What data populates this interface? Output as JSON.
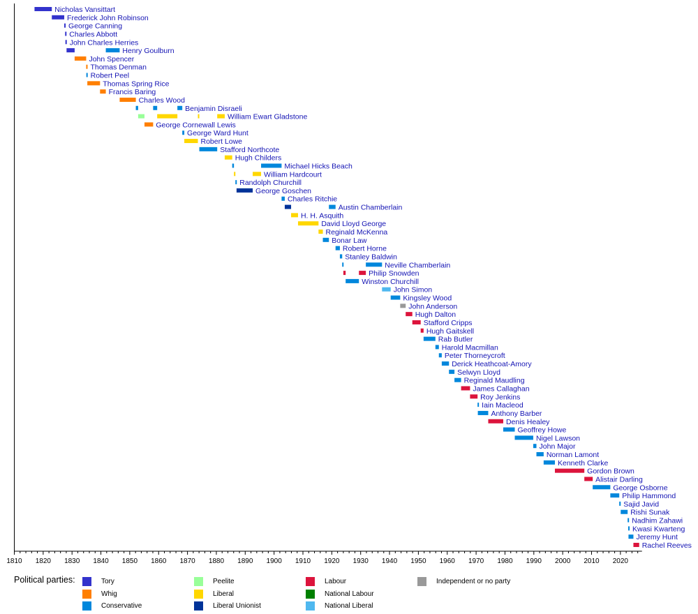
{
  "chart_data": {
    "type": "timeline",
    "title": "",
    "xlim": [
      1810,
      2026.5
    ],
    "x_ticks": [
      1810,
      1820,
      1830,
      1840,
      1850,
      1860,
      1870,
      1880,
      1890,
      1900,
      1910,
      1920,
      1930,
      1940,
      1950,
      1960,
      1970,
      1980,
      1990,
      2000,
      2010,
      2020
    ],
    "parties": {
      "Tory": "#3333cc",
      "Whig": "#ff7f00",
      "Conservative": "#0087dc",
      "Peelite": "#99ff99",
      "Liberal": "#ffd700",
      "Liberal Unionist": "#003399",
      "Labour": "#dc143c",
      "National Labour": "#008000",
      "National Liberal": "#4fb8ef",
      "Independent or no party": "#999999"
    },
    "legend_title": "Political parties:",
    "legend_order": [
      "Tory",
      "Whig",
      "Conservative",
      "Peelite",
      "Liberal",
      "Liberal Unionist",
      "Labour",
      "National Labour",
      "National Liberal",
      "Independent or no party"
    ],
    "rows": [
      {
        "name": "Nicholas Vansittart",
        "terms": [
          [
            1817,
            1823,
            "Tory"
          ]
        ]
      },
      {
        "name": "Frederick John Robinson",
        "terms": [
          [
            1823,
            1827.3,
            "Tory"
          ]
        ]
      },
      {
        "name": "George Canning",
        "terms": [
          [
            1827.3,
            1827.6,
            "Tory"
          ]
        ]
      },
      {
        "name": "Charles Abbott",
        "terms": [
          [
            1827.6,
            1827.7,
            "Tory"
          ]
        ]
      },
      {
        "name": "John Charles Herries",
        "terms": [
          [
            1827.7,
            1828.1,
            "Tory"
          ]
        ]
      },
      {
        "name": "Henry Goulburn",
        "terms": [
          [
            1828.1,
            1830.9,
            "Tory"
          ],
          [
            1841.7,
            1846.5,
            "Conservative"
          ]
        ]
      },
      {
        "name": "John Spencer",
        "terms": [
          [
            1830.9,
            1834.9,
            "Whig"
          ]
        ]
      },
      {
        "name": "Thomas Denman",
        "terms": [
          [
            1834.9,
            1834.95,
            "Whig"
          ]
        ]
      },
      {
        "name": "Robert Peel",
        "terms": [
          [
            1834.95,
            1835.3,
            "Conservative"
          ]
        ]
      },
      {
        "name": "Thomas Spring Rice",
        "terms": [
          [
            1835.3,
            1839.7,
            "Whig"
          ]
        ]
      },
      {
        "name": "Francis Baring",
        "terms": [
          [
            1839.7,
            1841.7,
            "Whig"
          ]
        ]
      },
      {
        "name": "Charles Wood",
        "terms": [
          [
            1846.5,
            1852.1,
            "Whig"
          ]
        ]
      },
      {
        "name": "Benjamin Disraeli",
        "terms": [
          [
            1852.1,
            1852.9,
            "Conservative"
          ],
          [
            1858.1,
            1859.5,
            "Conservative"
          ],
          [
            1866.5,
            1868.2,
            "Conservative"
          ]
        ]
      },
      {
        "name": "William Ewart Gladstone",
        "terms": [
          [
            1852.9,
            1855.1,
            "Peelite"
          ],
          [
            1859.5,
            1866.5,
            "Liberal"
          ],
          [
            1873.6,
            1874.1,
            "Liberal"
          ],
          [
            1880.3,
            1882.9,
            "Liberal"
          ]
        ]
      },
      {
        "name": "George Cornewall Lewis",
        "terms": [
          [
            1855.1,
            1858.1,
            "Whig"
          ]
        ]
      },
      {
        "name": "George Ward Hunt",
        "terms": [
          [
            1868.2,
            1868.9,
            "Conservative"
          ]
        ]
      },
      {
        "name": "Robert Lowe",
        "terms": [
          [
            1868.9,
            1873.6,
            "Liberal"
          ]
        ]
      },
      {
        "name": "Stafford Northcote",
        "terms": [
          [
            1874.1,
            1880.3,
            "Conservative"
          ]
        ]
      },
      {
        "name": "Hugh Childers",
        "terms": [
          [
            1882.9,
            1885.5,
            "Liberal"
          ]
        ]
      },
      {
        "name": "Michael Hicks Beach",
        "terms": [
          [
            1885.5,
            1886.1,
            "Conservative"
          ],
          [
            1895.5,
            1902.6,
            "Conservative"
          ]
        ]
      },
      {
        "name": "William Hardcourt",
        "terms": [
          [
            1886.1,
            1886.6,
            "Liberal"
          ],
          [
            1892.6,
            1895.5,
            "Liberal"
          ]
        ]
      },
      {
        "name": "Randolph Churchill",
        "terms": [
          [
            1886.6,
            1887.0,
            "Conservative"
          ]
        ]
      },
      {
        "name": "George Goschen",
        "terms": [
          [
            1887.0,
            1892.6,
            "Liberal Unionist"
          ]
        ]
      },
      {
        "name": "Charles Ritchie",
        "terms": [
          [
            1902.6,
            1903.7,
            "Conservative"
          ]
        ]
      },
      {
        "name": "Austin Chamberlain",
        "terms": [
          [
            1903.7,
            1905.9,
            "Liberal Unionist"
          ],
          [
            1919.0,
            1921.3,
            "Conservative"
          ]
        ]
      },
      {
        "name": "H. H. Asquith",
        "terms": [
          [
            1905.9,
            1908.3,
            "Liberal"
          ]
        ]
      },
      {
        "name": "David Lloyd George",
        "terms": [
          [
            1908.3,
            1915.4,
            "Liberal"
          ]
        ]
      },
      {
        "name": "Reginald McKenna",
        "terms": [
          [
            1915.4,
            1916.9,
            "Liberal"
          ]
        ]
      },
      {
        "name": "Bonar Law",
        "terms": [
          [
            1916.9,
            1919.0,
            "Conservative"
          ]
        ]
      },
      {
        "name": "Robert Horne",
        "terms": [
          [
            1921.3,
            1922.8,
            "Conservative"
          ]
        ]
      },
      {
        "name": "Stanley Baldwin",
        "terms": [
          [
            1922.8,
            1923.6,
            "Conservative"
          ]
        ]
      },
      {
        "name": "Neville Chamberlain",
        "terms": [
          [
            1923.6,
            1924.0,
            "Conservative"
          ],
          [
            1931.8,
            1937.4,
            "Conservative"
          ]
        ]
      },
      {
        "name": "Philip Snowden",
        "terms": [
          [
            1924.0,
            1924.8,
            "Labour"
          ],
          [
            1929.4,
            1931.8,
            "Labour"
          ]
        ]
      },
      {
        "name": "Winston Churchill",
        "terms": [
          [
            1924.8,
            1929.4,
            "Conservative"
          ]
        ]
      },
      {
        "name": "John Simon",
        "terms": [
          [
            1937.4,
            1940.4,
            "National Liberal"
          ]
        ]
      },
      {
        "name": "Kingsley Wood",
        "terms": [
          [
            1940.4,
            1943.7,
            "Conservative"
          ]
        ]
      },
      {
        "name": "John Anderson",
        "terms": [
          [
            1943.7,
            1945.6,
            "Independent or no party"
          ]
        ]
      },
      {
        "name": "Hugh Dalton",
        "terms": [
          [
            1945.6,
            1947.9,
            "Labour"
          ]
        ]
      },
      {
        "name": "Stafford Cripps",
        "terms": [
          [
            1947.9,
            1950.8,
            "Labour"
          ]
        ]
      },
      {
        "name": "Hugh Gaitskell",
        "terms": [
          [
            1950.8,
            1951.8,
            "Labour"
          ]
        ]
      },
      {
        "name": "Rab Butler",
        "terms": [
          [
            1951.8,
            1955.9,
            "Conservative"
          ]
        ]
      },
      {
        "name": "Harold Macmillan",
        "terms": [
          [
            1955.9,
            1957.1,
            "Conservative"
          ]
        ]
      },
      {
        "name": "Peter Thorneycroft",
        "terms": [
          [
            1957.1,
            1958.1,
            "Conservative"
          ]
        ]
      },
      {
        "name": "Derick Heathcoat-Amory",
        "terms": [
          [
            1958.1,
            1960.6,
            "Conservative"
          ]
        ]
      },
      {
        "name": "Selwyn Lloyd",
        "terms": [
          [
            1960.6,
            1962.5,
            "Conservative"
          ]
        ]
      },
      {
        "name": "Reginald Maudling",
        "terms": [
          [
            1962.5,
            1964.8,
            "Conservative"
          ]
        ]
      },
      {
        "name": "James Callaghan",
        "terms": [
          [
            1964.8,
            1967.9,
            "Labour"
          ]
        ]
      },
      {
        "name": "Roy Jenkins",
        "terms": [
          [
            1967.9,
            1970.5,
            "Labour"
          ]
        ]
      },
      {
        "name": "Iain Macleod",
        "terms": [
          [
            1970.5,
            1970.6,
            "Conservative"
          ]
        ]
      },
      {
        "name": "Anthony Barber",
        "terms": [
          [
            1970.6,
            1974.2,
            "Conservative"
          ]
        ]
      },
      {
        "name": "Denis Healey",
        "terms": [
          [
            1974.2,
            1979.4,
            "Labour"
          ]
        ]
      },
      {
        "name": "Geoffrey Howe",
        "terms": [
          [
            1979.4,
            1983.4,
            "Conservative"
          ]
        ]
      },
      {
        "name": "Nigel Lawson",
        "terms": [
          [
            1983.4,
            1989.8,
            "Conservative"
          ]
        ]
      },
      {
        "name": "John Major",
        "terms": [
          [
            1989.8,
            1990.9,
            "Conservative"
          ]
        ]
      },
      {
        "name": "Norman Lamont",
        "terms": [
          [
            1990.9,
            1993.4,
            "Conservative"
          ]
        ]
      },
      {
        "name": "Kenneth Clarke",
        "terms": [
          [
            1993.4,
            1997.3,
            "Conservative"
          ]
        ]
      },
      {
        "name": "Gordon Brown",
        "terms": [
          [
            1997.3,
            2007.5,
            "Labour"
          ]
        ]
      },
      {
        "name": "Alistair Darling",
        "terms": [
          [
            2007.5,
            2010.4,
            "Labour"
          ]
        ]
      },
      {
        "name": "George Osborne",
        "terms": [
          [
            2010.4,
            2016.5,
            "Conservative"
          ]
        ]
      },
      {
        "name": "Philip Hammond",
        "terms": [
          [
            2016.5,
            2019.6,
            "Conservative"
          ]
        ]
      },
      {
        "name": "Sajid Javid",
        "terms": [
          [
            2019.6,
            2020.1,
            "Conservative"
          ]
        ]
      },
      {
        "name": "Rishi Sunak",
        "terms": [
          [
            2020.1,
            2022.5,
            "Conservative"
          ]
        ]
      },
      {
        "name": "Nadhim Zahawi",
        "terms": [
          [
            2022.5,
            2022.7,
            "Conservative"
          ]
        ]
      },
      {
        "name": "Kwasi Kwarteng",
        "terms": [
          [
            2022.7,
            2022.8,
            "Conservative"
          ]
        ]
      },
      {
        "name": "Jeremy Hunt",
        "terms": [
          [
            2022.8,
            2024.5,
            "Conservative"
          ]
        ]
      },
      {
        "name": "Rachel Reeves",
        "terms": [
          [
            2024.5,
            2026.5,
            "Labour"
          ]
        ]
      }
    ]
  }
}
